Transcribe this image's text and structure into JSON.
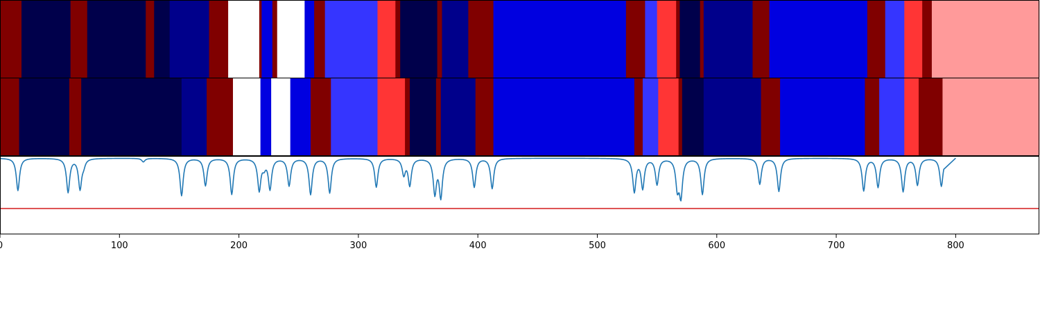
{
  "chart_data": {
    "type": "segmentation-comparison",
    "xlim": [
      0,
      870
    ],
    "xticks": [
      0,
      100,
      200,
      300,
      400,
      500,
      600,
      700,
      800
    ],
    "xtick_labels": [
      "0",
      "100",
      "200",
      "300",
      "400",
      "500",
      "600",
      "700",
      "800"
    ],
    "palette": {
      "K": "#00004b",
      "N": "#00008b",
      "B": "#0000e0",
      "L": "#3535ff",
      "W": "#ffffff",
      "M": "#800000",
      "R": "#ff3535",
      "P": "#ff9a9a"
    },
    "row1_segments": [
      {
        "start": 0,
        "end": 18,
        "class": "M"
      },
      {
        "start": 18,
        "end": 59,
        "class": "K"
      },
      {
        "start": 59,
        "end": 73,
        "class": "M"
      },
      {
        "start": 73,
        "end": 122,
        "class": "K"
      },
      {
        "start": 122,
        "end": 129,
        "class": "M"
      },
      {
        "start": 129,
        "end": 142,
        "class": "K"
      },
      {
        "start": 142,
        "end": 175,
        "class": "N"
      },
      {
        "start": 175,
        "end": 191,
        "class": "M"
      },
      {
        "start": 191,
        "end": 217,
        "class": "W"
      },
      {
        "start": 217,
        "end": 219,
        "class": "M"
      },
      {
        "start": 219,
        "end": 228,
        "class": "B"
      },
      {
        "start": 228,
        "end": 232,
        "class": "M"
      },
      {
        "start": 232,
        "end": 255,
        "class": "W"
      },
      {
        "start": 255,
        "end": 263,
        "class": "B"
      },
      {
        "start": 263,
        "end": 272,
        "class": "M"
      },
      {
        "start": 272,
        "end": 316,
        "class": "L"
      },
      {
        "start": 316,
        "end": 331,
        "class": "R"
      },
      {
        "start": 331,
        "end": 335,
        "class": "M"
      },
      {
        "start": 335,
        "end": 366,
        "class": "K"
      },
      {
        "start": 366,
        "end": 370,
        "class": "M"
      },
      {
        "start": 370,
        "end": 392,
        "class": "N"
      },
      {
        "start": 392,
        "end": 413,
        "class": "M"
      },
      {
        "start": 413,
        "end": 524,
        "class": "B"
      },
      {
        "start": 524,
        "end": 540,
        "class": "M"
      },
      {
        "start": 540,
        "end": 550,
        "class": "L"
      },
      {
        "start": 550,
        "end": 566,
        "class": "R"
      },
      {
        "start": 566,
        "end": 569,
        "class": "M"
      },
      {
        "start": 569,
        "end": 586,
        "class": "K"
      },
      {
        "start": 586,
        "end": 589,
        "class": "M"
      },
      {
        "start": 589,
        "end": 630,
        "class": "N"
      },
      {
        "start": 630,
        "end": 644,
        "class": "M"
      },
      {
        "start": 644,
        "end": 726,
        "class": "B"
      },
      {
        "start": 726,
        "end": 741,
        "class": "M"
      },
      {
        "start": 741,
        "end": 757,
        "class": "L"
      },
      {
        "start": 757,
        "end": 772,
        "class": "R"
      },
      {
        "start": 772,
        "end": 780,
        "class": "M"
      },
      {
        "start": 780,
        "end": 870,
        "class": "P"
      }
    ],
    "row2_segments": [
      {
        "start": 0,
        "end": 16,
        "class": "M"
      },
      {
        "start": 16,
        "end": 58,
        "class": "K"
      },
      {
        "start": 58,
        "end": 68,
        "class": "M"
      },
      {
        "start": 68,
        "end": 152,
        "class": "K"
      },
      {
        "start": 152,
        "end": 173,
        "class": "N"
      },
      {
        "start": 173,
        "end": 195,
        "class": "M"
      },
      {
        "start": 195,
        "end": 218,
        "class": "W"
      },
      {
        "start": 218,
        "end": 227,
        "class": "B"
      },
      {
        "start": 227,
        "end": 243,
        "class": "W"
      },
      {
        "start": 243,
        "end": 260,
        "class": "B"
      },
      {
        "start": 260,
        "end": 277,
        "class": "M"
      },
      {
        "start": 277,
        "end": 316,
        "class": "L"
      },
      {
        "start": 316,
        "end": 339,
        "class": "R"
      },
      {
        "start": 339,
        "end": 343,
        "class": "M"
      },
      {
        "start": 343,
        "end": 365,
        "class": "K"
      },
      {
        "start": 365,
        "end": 369,
        "class": "M"
      },
      {
        "start": 369,
        "end": 398,
        "class": "N"
      },
      {
        "start": 398,
        "end": 413,
        "class": "M"
      },
      {
        "start": 413,
        "end": 531,
        "class": "B"
      },
      {
        "start": 531,
        "end": 538,
        "class": "M"
      },
      {
        "start": 538,
        "end": 551,
        "class": "L"
      },
      {
        "start": 551,
        "end": 568,
        "class": "R"
      },
      {
        "start": 568,
        "end": 571,
        "class": "M"
      },
      {
        "start": 571,
        "end": 589,
        "class": "K"
      },
      {
        "start": 589,
        "end": 637,
        "class": "N"
      },
      {
        "start": 637,
        "end": 653,
        "class": "M"
      },
      {
        "start": 653,
        "end": 724,
        "class": "B"
      },
      {
        "start": 724,
        "end": 736,
        "class": "M"
      },
      {
        "start": 736,
        "end": 757,
        "class": "L"
      },
      {
        "start": 757,
        "end": 769,
        "class": "R"
      },
      {
        "start": 769,
        "end": 789,
        "class": "M"
      },
      {
        "start": 789,
        "end": 870,
        "class": "P"
      }
    ],
    "boundary_signal": {
      "baseline": 0,
      "ylim": [
        -1.05,
        0.02
      ],
      "dips": [
        {
          "x": 15,
          "depth": 0.45
        },
        {
          "x": 57,
          "depth": 0.47
        },
        {
          "x": 67,
          "depth": 0.42
        },
        {
          "x": 70,
          "depth": 0.08
        },
        {
          "x": 120,
          "depth": 0.05
        },
        {
          "x": 152,
          "depth": 0.52
        },
        {
          "x": 172,
          "depth": 0.38
        },
        {
          "x": 194,
          "depth": 0.5
        },
        {
          "x": 217,
          "depth": 0.44
        },
        {
          "x": 221,
          "depth": 0.1
        },
        {
          "x": 226,
          "depth": 0.42
        },
        {
          "x": 242,
          "depth": 0.38
        },
        {
          "x": 260,
          "depth": 0.5
        },
        {
          "x": 276,
          "depth": 0.48
        },
        {
          "x": 315,
          "depth": 0.4
        },
        {
          "x": 338,
          "depth": 0.22
        },
        {
          "x": 343,
          "depth": 0.37
        },
        {
          "x": 364,
          "depth": 0.48
        },
        {
          "x": 369,
          "depth": 0.53
        },
        {
          "x": 397,
          "depth": 0.4
        },
        {
          "x": 412,
          "depth": 0.42
        },
        {
          "x": 531,
          "depth": 0.46
        },
        {
          "x": 538,
          "depth": 0.41
        },
        {
          "x": 550,
          "depth": 0.36
        },
        {
          "x": 567,
          "depth": 0.39
        },
        {
          "x": 570,
          "depth": 0.5
        },
        {
          "x": 588,
          "depth": 0.5
        },
        {
          "x": 636,
          "depth": 0.36
        },
        {
          "x": 652,
          "depth": 0.46
        },
        {
          "x": 723,
          "depth": 0.45
        },
        {
          "x": 735,
          "depth": 0.4
        },
        {
          "x": 756,
          "depth": 0.46
        },
        {
          "x": 768,
          "depth": 0.37
        },
        {
          "x": 788,
          "depth": 0.39
        }
      ],
      "threshold": -0.7,
      "line_color": "#1f77b4",
      "threshold_color": "#d62728"
    }
  }
}
